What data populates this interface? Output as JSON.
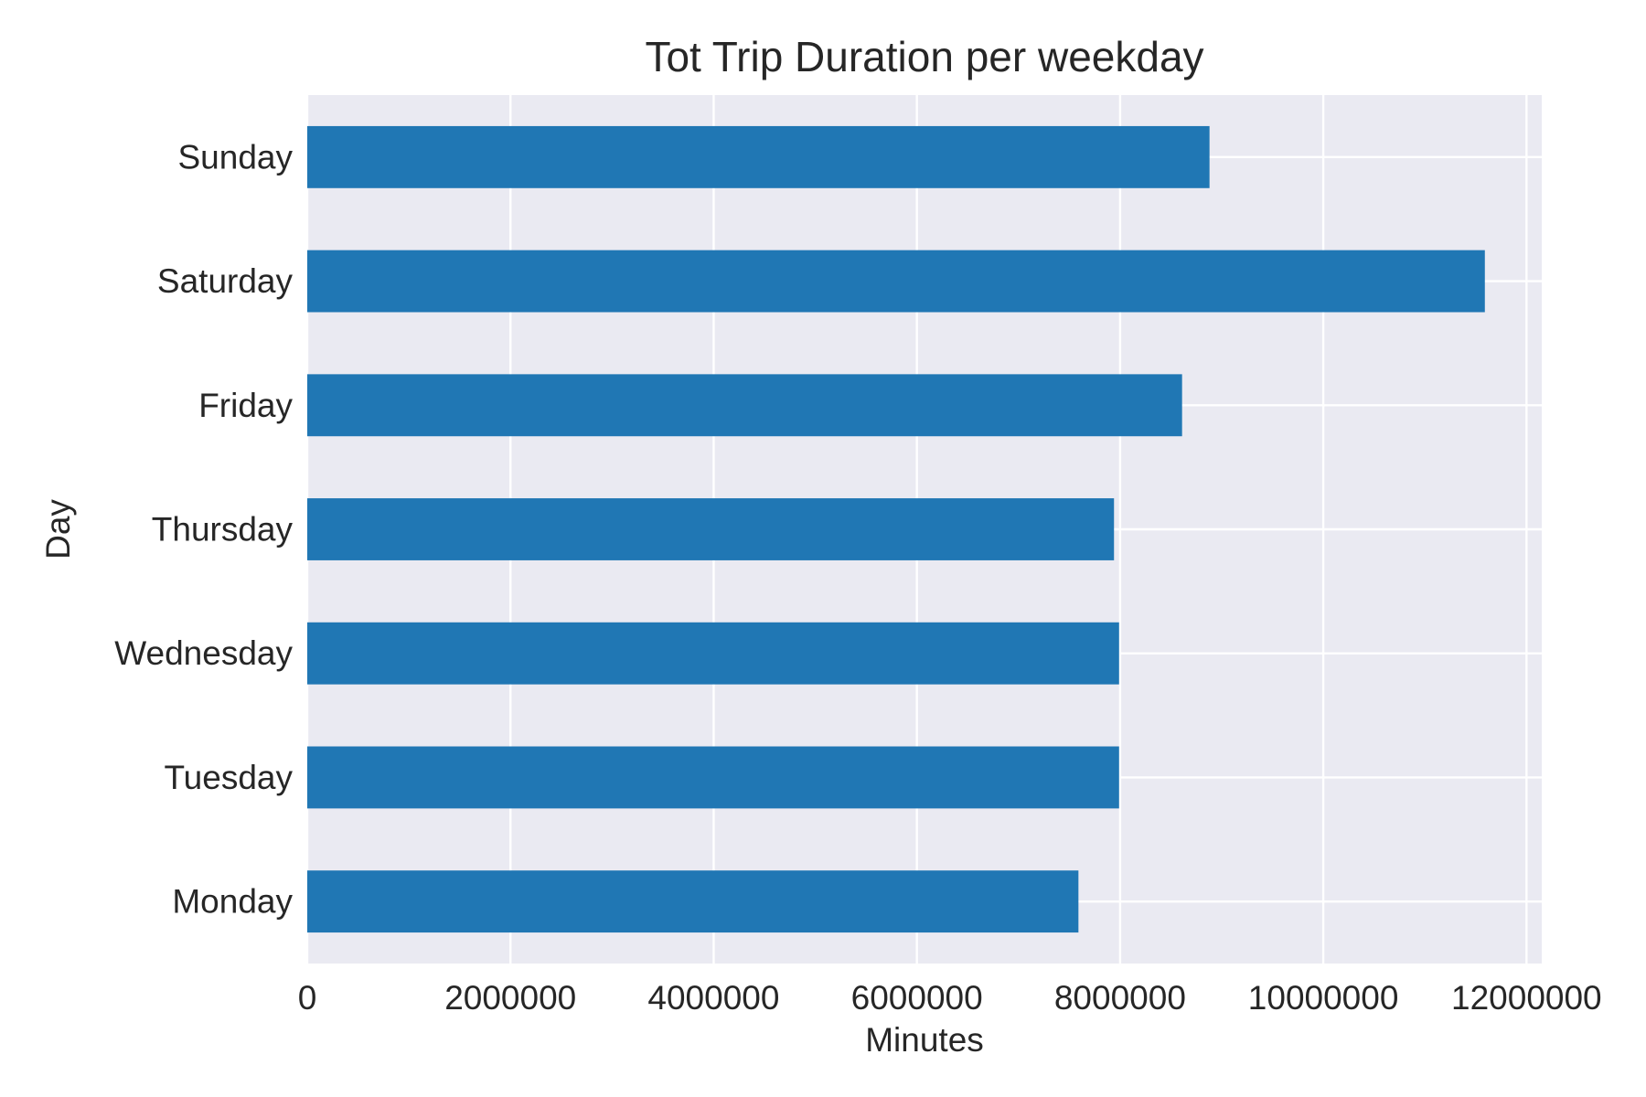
{
  "chart_data": {
    "type": "bar",
    "orientation": "horizontal",
    "title": "Tot Trip Duration per weekday",
    "xlabel": "Minutes",
    "ylabel": "Day",
    "categories": [
      "Sunday",
      "Saturday",
      "Friday",
      "Thursday",
      "Wednesday",
      "Tuesday",
      "Monday"
    ],
    "values": [
      8880000,
      11590000,
      8610000,
      7940000,
      7990000,
      7990000,
      7590000
    ],
    "xlim": [
      0,
      12150000
    ],
    "xticks": [
      0,
      2000000,
      4000000,
      6000000,
      8000000,
      10000000,
      12000000
    ],
    "xtick_labels": [
      "0",
      "2000000",
      "4000000",
      "6000000",
      "8000000",
      "10000000",
      "12000000"
    ],
    "grid": true,
    "colors": {
      "bar": "#2077b4",
      "plot_background": "#eaeaf2",
      "grid": "#ffffff",
      "text": "#262626"
    }
  }
}
